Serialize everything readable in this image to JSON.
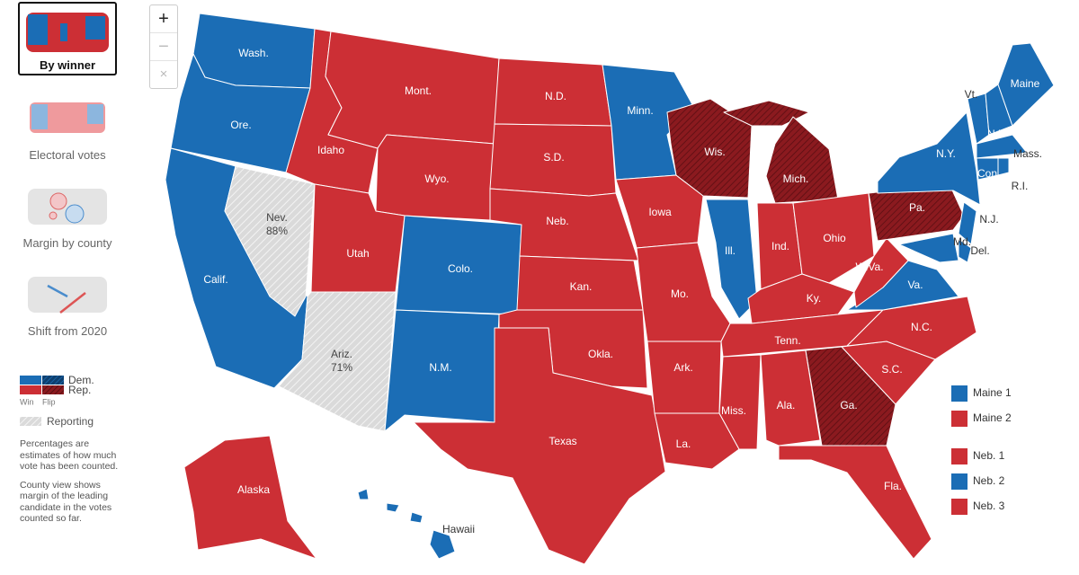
{
  "controls": [
    "+",
    "−",
    "×"
  ],
  "views": [
    {
      "label": "By winner",
      "active": true
    },
    {
      "label": "Electoral votes",
      "active": false
    },
    {
      "label": "Margin by county",
      "active": false
    },
    {
      "label": "Shift from 2020",
      "active": false
    }
  ],
  "legend": {
    "dem": "Dem.",
    "rep": "Rep.",
    "win": "Win",
    "flip": "Flip",
    "reporting": "Reporting",
    "notes": [
      "Percentages are estimates of how much vote has been counted.",
      "County view shows margin of the leading candidate in the votes counted so far."
    ]
  },
  "colors": {
    "dem": "#1b6db5",
    "rep": "#cc2f35",
    "flip": "#8b1a1f",
    "reporting": "#dadada"
  },
  "states": [
    {
      "label": "Wash.",
      "party": "dem"
    },
    {
      "label": "Ore.",
      "party": "dem"
    },
    {
      "label": "Calif.",
      "party": "dem"
    },
    {
      "label": "Nev.",
      "status": "reporting",
      "reported": "88%"
    },
    {
      "label": "Idaho",
      "party": "rep"
    },
    {
      "label": "Mont.",
      "party": "rep"
    },
    {
      "label": "Wyo.",
      "party": "rep"
    },
    {
      "label": "Utah",
      "party": "rep"
    },
    {
      "label": "Ariz.",
      "status": "reporting",
      "reported": "71%"
    },
    {
      "label": "Colo.",
      "party": "dem"
    },
    {
      "label": "N.M.",
      "party": "dem"
    },
    {
      "label": "N.D.",
      "party": "rep"
    },
    {
      "label": "S.D.",
      "party": "rep"
    },
    {
      "label": "Neb.",
      "party": "rep"
    },
    {
      "label": "Kan.",
      "party": "rep"
    },
    {
      "label": "Okla.",
      "party": "rep"
    },
    {
      "label": "Texas",
      "party": "rep"
    },
    {
      "label": "Minn.",
      "party": "dem"
    },
    {
      "label": "Iowa",
      "party": "rep"
    },
    {
      "label": "Mo.",
      "party": "rep"
    },
    {
      "label": "Ark.",
      "party": "rep"
    },
    {
      "label": "La.",
      "party": "rep"
    },
    {
      "label": "Wis.",
      "party": "rep",
      "status": "flip"
    },
    {
      "label": "Ill.",
      "party": "dem"
    },
    {
      "label": "Mich.",
      "party": "rep",
      "status": "flip"
    },
    {
      "label": "Ind.",
      "party": "rep"
    },
    {
      "label": "Ohio",
      "party": "rep"
    },
    {
      "label": "Ky.",
      "party": "rep"
    },
    {
      "label": "Tenn.",
      "party": "rep"
    },
    {
      "label": "Miss.",
      "party": "rep"
    },
    {
      "label": "Ala.",
      "party": "rep"
    },
    {
      "label": "Ga.",
      "party": "rep",
      "status": "flip"
    },
    {
      "label": "Fla.",
      "party": "rep"
    },
    {
      "label": "S.C.",
      "party": "rep"
    },
    {
      "label": "N.C.",
      "party": "rep"
    },
    {
      "label": "Va.",
      "party": "dem"
    },
    {
      "label": "W.Va.",
      "party": "rep"
    },
    {
      "label": "Pa.",
      "party": "rep",
      "status": "flip"
    },
    {
      "label": "N.Y.",
      "party": "dem"
    },
    {
      "label": "N.J.",
      "party": "dem"
    },
    {
      "label": "Del.",
      "party": "dem"
    },
    {
      "label": "Md.",
      "party": "dem"
    },
    {
      "label": "Vt.",
      "party": "dem"
    },
    {
      "label": "N.H.",
      "party": "dem"
    },
    {
      "label": "Maine",
      "party": "dem"
    },
    {
      "label": "Mass.",
      "party": "dem"
    },
    {
      "label": "Conn.",
      "party": "dem"
    },
    {
      "label": "R.I.",
      "party": "dem"
    },
    {
      "label": "Alaska",
      "party": "rep"
    },
    {
      "label": "Hawaii",
      "party": "dem"
    }
  ],
  "districts": [
    {
      "label": "Maine 1",
      "party": "dem"
    },
    {
      "label": "Maine 2",
      "party": "rep"
    },
    {
      "label": "Neb. 1",
      "party": "rep"
    },
    {
      "label": "Neb. 2",
      "party": "dem"
    },
    {
      "label": "Neb. 3",
      "party": "rep"
    }
  ]
}
